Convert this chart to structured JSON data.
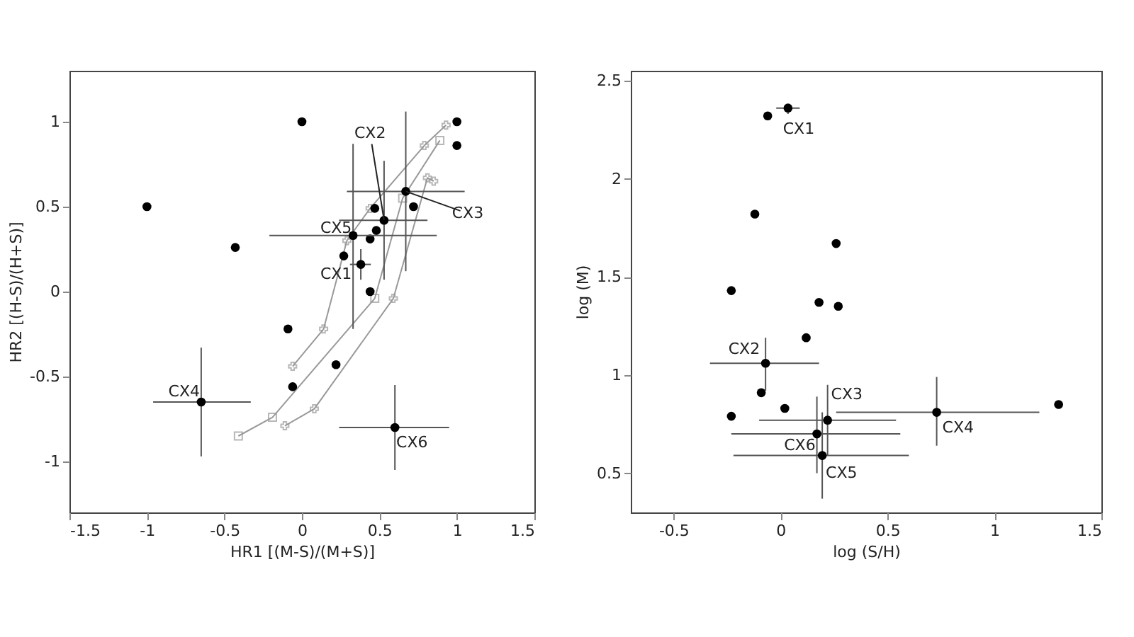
{
  "chart_data": [
    {
      "type": "scatter",
      "xlabel": "HR1 [(M-S)/(M+S)]",
      "ylabel": "HR2 [(H-S)/(H+S)]",
      "xlim": [
        -1.5,
        1.5
      ],
      "ylim": [
        -1.3,
        1.3
      ],
      "xticks": [
        -1.5,
        -1,
        -0.5,
        0,
        0.5,
        1,
        1.5
      ],
      "yticks": [
        -1,
        -0.5,
        0,
        0.5,
        1
      ],
      "grid": false,
      "marker": "circle",
      "series": [
        {
          "type": "line",
          "color": "#999999",
          "marker": "cross",
          "x": [
            -0.06,
            0.14,
            0.29,
            0.44,
            0.79,
            0.93
          ],
          "values": [
            -0.44,
            -0.22,
            0.3,
            0.49,
            0.86,
            0.98
          ]
        },
        {
          "type": "line",
          "color": "#999999",
          "marker": "square",
          "x": [
            -0.41,
            -0.19,
            0.47,
            0.65,
            0.89
          ],
          "values": [
            -0.85,
            -0.74,
            -0.04,
            0.55,
            0.89
          ]
        },
        {
          "type": "line",
          "color": "#999999",
          "marker": "cross",
          "x": [
            -0.11,
            0.08,
            0.59,
            0.81,
            0.85
          ],
          "values": [
            -0.79,
            -0.69,
            -0.04,
            0.67,
            0.65
          ]
        },
        {
          "type": "scatter",
          "color": "#000000",
          "x": [
            0,
            1.0,
            1.0,
            -1,
            -0.43,
            0.47,
            0.72,
            0.48,
            0.44,
            0.27,
            0.44,
            -0.09,
            0.22,
            -0.06
          ],
          "values": [
            1.0,
            1.0,
            0.86,
            0.5,
            0.26,
            0.49,
            0.5,
            0.36,
            0.31,
            0.21,
            0.0,
            -0.22,
            -0.43,
            -0.56
          ]
        },
        {
          "type": "scatter",
          "color": "#000000",
          "x": [
            0.38,
            0.53,
            0.67,
            -0.65,
            0.33,
            0.6
          ],
          "values": [
            0.16,
            0.42,
            0.59,
            -0.65,
            0.33,
            -0.8
          ],
          "errors": [
            [
              0.07,
              0.25
            ],
            [
              0.07,
              0.77
            ],
            [
              0.12,
              1.06
            ],
            [
              -0.97,
              -0.33
            ],
            [
              -0.22,
              0.87
            ],
            [
              -1.05,
              -0.55
            ]
          ],
          "xerrors": [
            [
              0.31,
              0.445
            ],
            [
              0.24,
              0.81
            ],
            [
              0.29,
              1.05
            ],
            [
              -0.96,
              -0.33
            ],
            [
              -0.21,
              0.87
            ],
            [
              0.24,
              0.95
            ]
          ]
        }
      ],
      "annotations": [
        {
          "text": "CX1",
          "x": 0.38,
          "y": 0.16
        },
        {
          "text": "CX2",
          "x": 0.53,
          "y": 0.42
        },
        {
          "text": "CX3",
          "x": 0.67,
          "y": 0.59
        },
        {
          "text": "CX4",
          "x": -0.65,
          "y": -0.65
        },
        {
          "text": "CX5",
          "x": 0.33,
          "y": 0.33
        },
        {
          "text": "CX6",
          "x": 0.6,
          "y": -0.8
        }
      ]
    },
    {
      "type": "scatter",
      "xlabel": "log (S/H)",
      "ylabel": "log (M)",
      "xlim": [
        -0.7,
        1.5
      ],
      "ylim": [
        0.3,
        2.55
      ],
      "xticks": [
        -0.5,
        0,
        0.5,
        1,
        1.5
      ],
      "yticks": [
        0.5,
        1,
        1.5,
        2,
        2.5
      ],
      "grid": false,
      "marker": "circle",
      "series": [
        {
          "type": "scatter",
          "color": "#000000",
          "x": [
            -0.06,
            -0.12,
            0.26,
            -0.23,
            0.18,
            0.27,
            0.12,
            -0.09,
            -0.23,
            0.02,
            1.3
          ],
          "values": [
            2.32,
            1.82,
            1.67,
            1.43,
            1.37,
            1.35,
            1.19,
            0.91,
            0.79,
            0.83,
            0.85
          ]
        },
        {
          "type": "scatter",
          "color": "#000000",
          "x": [
            0.035,
            -0.07,
            0.22,
            0.73,
            0.195,
            0.17
          ],
          "values": [
            2.36,
            1.06,
            0.77,
            0.81,
            0.59,
            0.7
          ],
          "errors": [
            [
              2.33,
              2.38
            ],
            [
              0.92,
              1.19
            ],
            [
              0.59,
              0.95
            ],
            [
              0.64,
              0.99
            ],
            [
              0.37,
              0.81
            ],
            [
              0.5,
              0.89
            ]
          ],
          "xerrors": [
            [
              -0.02,
              0.09
            ],
            [
              -0.33,
              0.18
            ],
            [
              -0.1,
              0.54
            ],
            [
              0.26,
              1.21
            ],
            [
              -0.22,
              0.6
            ],
            [
              -0.23,
              0.56
            ]
          ]
        }
      ],
      "annotations": [
        {
          "text": "CX1",
          "x": 0.035,
          "y": 2.36
        },
        {
          "text": "CX2",
          "x": -0.07,
          "y": 1.06
        },
        {
          "text": "CX3",
          "x": 0.22,
          "y": 0.77
        },
        {
          "text": "CX4",
          "x": 0.73,
          "y": 0.81
        },
        {
          "text": "CX5",
          "x": 0.195,
          "y": 0.59
        },
        {
          "text": "CX6",
          "x": 0.17,
          "y": 0.7
        }
      ]
    }
  ]
}
